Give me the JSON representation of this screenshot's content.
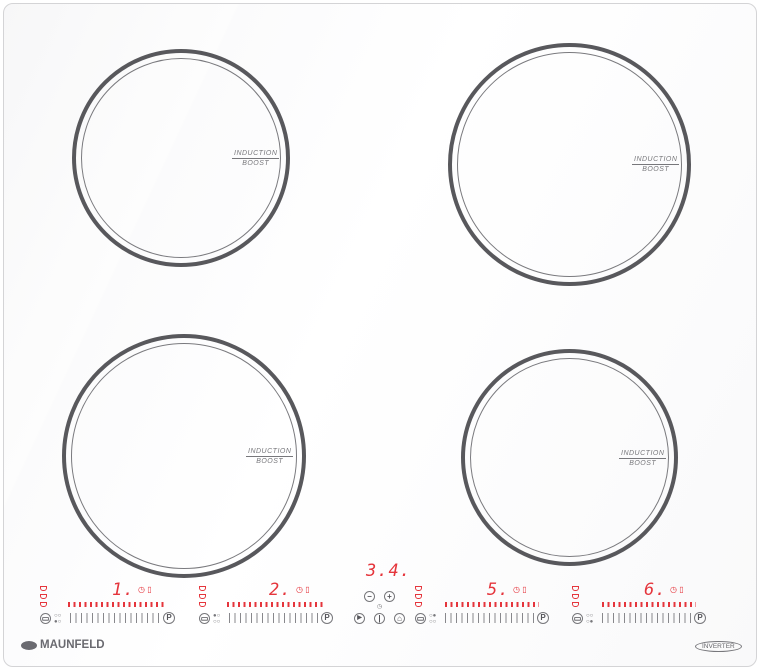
{
  "brand": "MAUNFELD",
  "badge": "INVERTER",
  "burners": [
    {
      "id": "front-left-top",
      "label1": "INDUCTION",
      "label2": "BOOST"
    },
    {
      "id": "rear-right",
      "label1": "INDUCTION",
      "label2": "BOOST"
    },
    {
      "id": "front-left",
      "label1": "INDUCTION",
      "label2": "BOOST"
    },
    {
      "id": "front-right",
      "label1": "INDUCTION",
      "label2": "BOOST"
    }
  ],
  "zones": [
    {
      "display": "1."
    },
    {
      "display": "2."
    },
    {
      "display": "5."
    },
    {
      "display": "6."
    }
  ],
  "center": {
    "display": "3.4.",
    "minus": "−",
    "plus": "+",
    "play": "▶",
    "power": "|"
  },
  "pause_label": "P",
  "colors": {
    "display_red": "#e5353c",
    "ring": "#58585c",
    "glass": "#ffffff"
  }
}
